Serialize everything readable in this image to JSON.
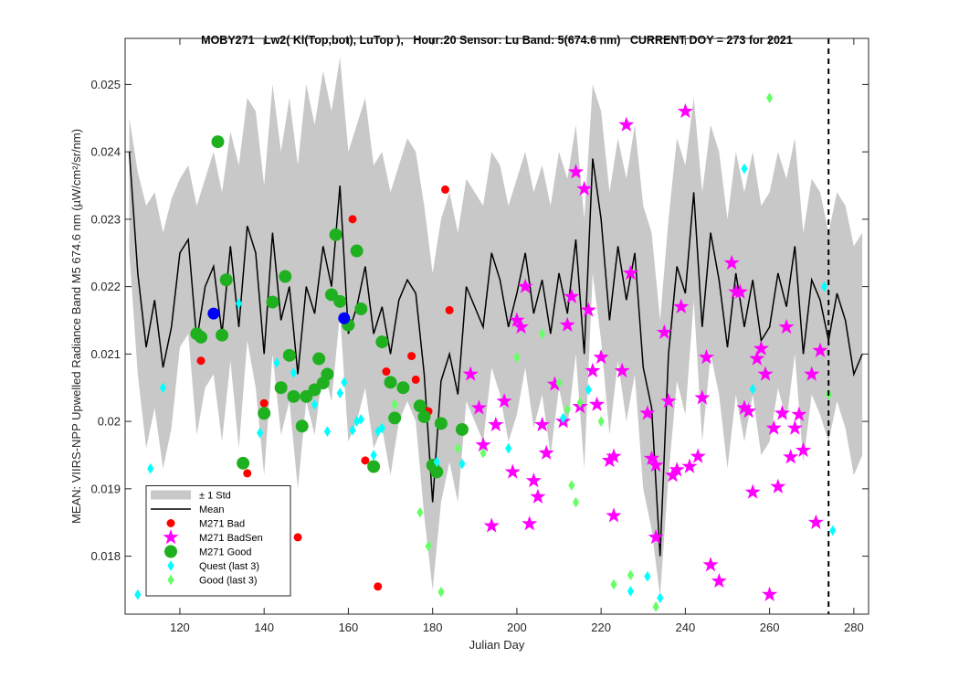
{
  "chart_data": {
    "type": "line",
    "title": "MOBY271   Lw2( Kl(Top,bot), LuTop ),   Hour:20 Sensor: Lu Band: 5(674.6 nm)   CURRENT DOY = 273 for 2021",
    "x_label": "Julian Day",
    "y_label": "MEAN: VIIRS-NPP Upwelled Radiance Band M5 674.6 nm (µW/cm²/sr/nm)",
    "xlim": [
      107,
      283.5
    ],
    "ylim": [
      0.01714,
      0.02548
    ],
    "xticks": [
      120,
      140,
      160,
      180,
      200,
      220,
      240,
      260,
      280
    ],
    "yticks": [
      0.018,
      0.019,
      0.02,
      0.021,
      0.022,
      0.023,
      0.024,
      0.025
    ],
    "legend": "lower left",
    "vline": 274,
    "series": [
      {
        "name": "± 1 Std",
        "kind": "band",
        "color": "#c8c8c8",
        "x": [
          108,
          110,
          112,
          114,
          116,
          118,
          120,
          122,
          124,
          126,
          128,
          130,
          132,
          134,
          136,
          138,
          140,
          142,
          144,
          146,
          148,
          150,
          152,
          154,
          156,
          158,
          160,
          162,
          164,
          166,
          168,
          170,
          172,
          174,
          176,
          178,
          180,
          182,
          184,
          186,
          188,
          190,
          192,
          194,
          196,
          198,
          200,
          202,
          204,
          206,
          208,
          210,
          212,
          214,
          216,
          218,
          220,
          222,
          224,
          226,
          228,
          230,
          232,
          234,
          236,
          238,
          240,
          242,
          244,
          246,
          248,
          250,
          252,
          254,
          256,
          258,
          260,
          262,
          264,
          266,
          268,
          270,
          272,
          274,
          276,
          278,
          280,
          282
        ],
        "upper": [
          0.0245,
          0.0237,
          0.0232,
          0.0234,
          0.0228,
          0.0233,
          0.0236,
          0.0238,
          0.0232,
          0.0236,
          0.024,
          0.0234,
          0.0243,
          0.0238,
          0.0248,
          0.0246,
          0.0235,
          0.025,
          0.024,
          0.0248,
          0.0238,
          0.025,
          0.0244,
          0.0252,
          0.0246,
          0.0254,
          0.024,
          0.0244,
          0.0248,
          0.0238,
          0.024,
          0.0234,
          0.0238,
          0.0242,
          0.024,
          0.0232,
          0.0222,
          0.023,
          0.0234,
          0.0228,
          0.0236,
          0.0234,
          0.0232,
          0.024,
          0.0238,
          0.0232,
          0.0236,
          0.024,
          0.0234,
          0.0238,
          0.0232,
          0.024,
          0.0236,
          0.0244,
          0.023,
          0.025,
          0.0246,
          0.0234,
          0.0242,
          0.0236,
          0.0244,
          0.0232,
          0.0228,
          0.0215,
          0.023,
          0.0242,
          0.0238,
          0.0248,
          0.0234,
          0.0244,
          0.024,
          0.023,
          0.024,
          0.0234,
          0.024,
          0.0232,
          0.0234,
          0.024,
          0.0236,
          0.0242,
          0.0228,
          0.0236,
          0.0234,
          0.0228,
          0.0234,
          0.0232,
          0.0226,
          0.0228
        ],
        "lower": [
          0.0225,
          0.0207,
          0.0196,
          0.0202,
          0.0193,
          0.0199,
          0.0211,
          0.0213,
          0.0198,
          0.0205,
          0.0207,
          0.0197,
          0.0209,
          0.0196,
          0.0212,
          0.0205,
          0.0192,
          0.021,
          0.0198,
          0.0203,
          0.019,
          0.0203,
          0.0198,
          0.0208,
          0.0203,
          0.0216,
          0.0197,
          0.02,
          0.0205,
          0.0196,
          0.0199,
          0.0192,
          0.02,
          0.0203,
          0.02,
          0.0186,
          0.0175,
          0.0188,
          0.0194,
          0.0188,
          0.0203,
          0.02,
          0.0197,
          0.0208,
          0.0204,
          0.0197,
          0.0201,
          0.0208,
          0.0199,
          0.0204,
          0.0195,
          0.0205,
          0.0199,
          0.021,
          0.0193,
          0.0222,
          0.0212,
          0.0198,
          0.0209,
          0.02,
          0.0207,
          0.019,
          0.0184,
          0.0174,
          0.0192,
          0.0206,
          0.0201,
          0.0218,
          0.0197,
          0.021,
          0.0204,
          0.0193,
          0.0204,
          0.0197,
          0.0204,
          0.0195,
          0.0197,
          0.0205,
          0.02,
          0.021,
          0.0194,
          0.0204,
          0.0201,
          0.0197,
          0.0203,
          0.0199,
          0.0192,
          0.0195
        ]
      },
      {
        "name": "Mean",
        "kind": "line",
        "color": "#000000",
        "x": [
          108,
          110,
          112,
          114,
          116,
          118,
          120,
          122,
          124,
          126,
          128,
          130,
          132,
          134,
          136,
          138,
          140,
          142,
          144,
          146,
          148,
          150,
          152,
          154,
          156,
          158,
          160,
          162,
          164,
          166,
          168,
          170,
          172,
          174,
          176,
          178,
          180,
          182,
          184,
          186,
          188,
          190,
          192,
          194,
          196,
          198,
          200,
          202,
          204,
          206,
          208,
          210,
          212,
          214,
          216,
          218,
          220,
          222,
          224,
          226,
          228,
          230,
          232,
          234,
          236,
          238,
          240,
          242,
          244,
          246,
          248,
          250,
          252,
          254,
          256,
          258,
          260,
          262,
          264,
          266,
          268,
          270,
          272,
          274,
          276,
          278,
          280,
          282
        ],
        "values": [
          0.024,
          0.0222,
          0.0211,
          0.0218,
          0.0208,
          0.0214,
          0.0225,
          0.0227,
          0.0212,
          0.022,
          0.0223,
          0.0213,
          0.0226,
          0.0214,
          0.0229,
          0.0225,
          0.021,
          0.0228,
          0.0215,
          0.022,
          0.0207,
          0.022,
          0.0216,
          0.0226,
          0.022,
          0.0235,
          0.0213,
          0.0217,
          0.0223,
          0.0213,
          0.0217,
          0.021,
          0.0218,
          0.0221,
          0.0219,
          0.0207,
          0.0188,
          0.0206,
          0.021,
          0.0204,
          0.022,
          0.0217,
          0.0214,
          0.0225,
          0.0221,
          0.0214,
          0.0219,
          0.0225,
          0.0216,
          0.0221,
          0.0213,
          0.0222,
          0.0216,
          0.0227,
          0.021,
          0.0239,
          0.023,
          0.0215,
          0.0226,
          0.0218,
          0.0225,
          0.0208,
          0.0202,
          0.018,
          0.021,
          0.0223,
          0.0219,
          0.0234,
          0.0214,
          0.0228,
          0.0221,
          0.0211,
          0.0222,
          0.0214,
          0.0221,
          0.0212,
          0.0214,
          0.0222,
          0.0217,
          0.0226,
          0.021,
          0.0221,
          0.0218,
          0.0212,
          0.0219,
          0.0215,
          0.0207,
          0.021
        ]
      },
      {
        "name": "M271 Bad",
        "kind": "marker",
        "marker": "circle",
        "size": 4.5,
        "color": "#ff0000",
        "x": [
          125,
          136,
          140,
          148,
          161,
          164,
          167,
          169,
          175,
          176,
          179,
          183,
          184
        ],
        "values": [
          0.0209,
          0.01923,
          0.02027,
          0.01828,
          0.023,
          0.01942,
          0.01755,
          0.02074,
          0.02097,
          0.02062,
          0.02015,
          0.02344,
          0.02165
        ]
      },
      {
        "name": "M271 BadSen",
        "kind": "marker",
        "marker": "star",
        "size": 9,
        "color": "#ff00ff",
        "x": [
          189,
          191,
          192,
          194,
          195,
          197,
          199,
          200,
          201,
          202,
          203,
          204,
          205,
          206,
          207,
          209,
          211,
          212,
          213,
          214,
          215,
          216,
          217,
          218,
          219,
          220,
          222,
          223,
          223,
          225,
          226,
          227,
          231,
          232,
          233,
          233,
          235,
          236,
          237,
          238,
          239,
          240,
          241,
          243,
          244,
          245,
          246,
          248,
          251,
          252,
          253,
          254,
          255,
          256,
          257,
          258,
          259,
          260,
          261,
          262,
          263,
          264,
          265,
          266,
          267,
          268,
          270,
          271,
          272
        ],
        "values": [
          0.0207,
          0.0202,
          0.01965,
          0.01845,
          0.01995,
          0.0203,
          0.01925,
          0.0215,
          0.0214,
          0.022,
          0.01848,
          0.01912,
          0.01888,
          0.01995,
          0.01953,
          0.02055,
          0.02,
          0.02143,
          0.02185,
          0.0237,
          0.02022,
          0.02345,
          0.02165,
          0.02075,
          0.02025,
          0.02095,
          0.01942,
          0.01948,
          0.0186,
          0.02075,
          0.0244,
          0.0222,
          0.02012,
          0.01945,
          0.01828,
          0.01935,
          0.02132,
          0.0203,
          0.0192,
          0.01928,
          0.0217,
          0.0246,
          0.01933,
          0.01948,
          0.02035,
          0.02095,
          0.01787,
          0.01763,
          0.02235,
          0.02192,
          0.02192,
          0.0202,
          0.02015,
          0.01895,
          0.02093,
          0.02108,
          0.0207,
          0.01743,
          0.0199,
          0.01903,
          0.02012,
          0.0214,
          0.01947,
          0.0199,
          0.0201,
          0.01957,
          0.0207,
          0.0185,
          0.02105
        ]
      },
      {
        "name": "M271 Good",
        "kind": "marker",
        "marker": "circle",
        "size": 7,
        "color": "#1fb01f",
        "x": [
          129,
          124,
          125,
          130,
          131,
          135,
          140,
          142,
          144,
          145,
          146,
          147,
          149,
          150,
          152,
          153,
          154,
          155,
          156,
          157,
          158,
          160,
          162,
          163,
          166,
          168,
          170,
          171,
          173,
          177,
          178,
          180,
          181,
          182,
          187
        ],
        "values": [
          0.02415,
          0.0213,
          0.02125,
          0.02128,
          0.0221,
          0.01938,
          0.02012,
          0.02177,
          0.0205,
          0.02215,
          0.02098,
          0.02037,
          0.01993,
          0.02037,
          0.02047,
          0.02093,
          0.02057,
          0.0207,
          0.02188,
          0.02277,
          0.02178,
          0.02143,
          0.02253,
          0.02167,
          0.01933,
          0.02118,
          0.02058,
          0.02005,
          0.0205,
          0.02023,
          0.02007,
          0.01935,
          0.01925,
          0.01997,
          0.01988
        ]
      },
      {
        "kind": "marker",
        "marker": "circle",
        "size": 6.5,
        "color": "#0000ff",
        "x": [
          128,
          159
        ],
        "values": [
          0.0216,
          0.02153
        ]
      },
      {
        "name": "Quest (last 3)",
        "kind": "marker",
        "marker": "diamond",
        "size": 4.5,
        "color": "#00ffff",
        "x": [
          110,
          113,
          116,
          134,
          139,
          143,
          147,
          152,
          155,
          158,
          159,
          161,
          162,
          163,
          166,
          167,
          168,
          181,
          187,
          198,
          211,
          217,
          227,
          231,
          234,
          254,
          256,
          273,
          275
        ],
        "values": [
          0.01743,
          0.0193,
          0.0205,
          0.02175,
          0.01983,
          0.02087,
          0.02072,
          0.02025,
          0.01985,
          0.02042,
          0.02058,
          0.01987,
          0.02,
          0.02003,
          0.0195,
          0.01985,
          0.0199,
          0.0194,
          0.01937,
          0.0196,
          0.02005,
          0.02047,
          0.01748,
          0.0177,
          0.01738,
          0.02375,
          0.02048,
          0.022,
          0.01838
        ]
      },
      {
        "name": "Good (last 3)",
        "kind": "marker",
        "marker": "diamond",
        "size": 4.5,
        "color": "#66ff66",
        "x": [
          171,
          177,
          179,
          182,
          186,
          192,
          200,
          206,
          210,
          212,
          213,
          214,
          215,
          220,
          223,
          227,
          233,
          260,
          274
        ],
        "values": [
          0.02025,
          0.01865,
          0.01815,
          0.01747,
          0.0196,
          0.01953,
          0.02095,
          0.0213,
          0.02057,
          0.02018,
          0.01905,
          0.0188,
          0.02028,
          0.02,
          0.01758,
          0.01772,
          0.01725,
          0.0248,
          0.0204
        ]
      }
    ]
  }
}
